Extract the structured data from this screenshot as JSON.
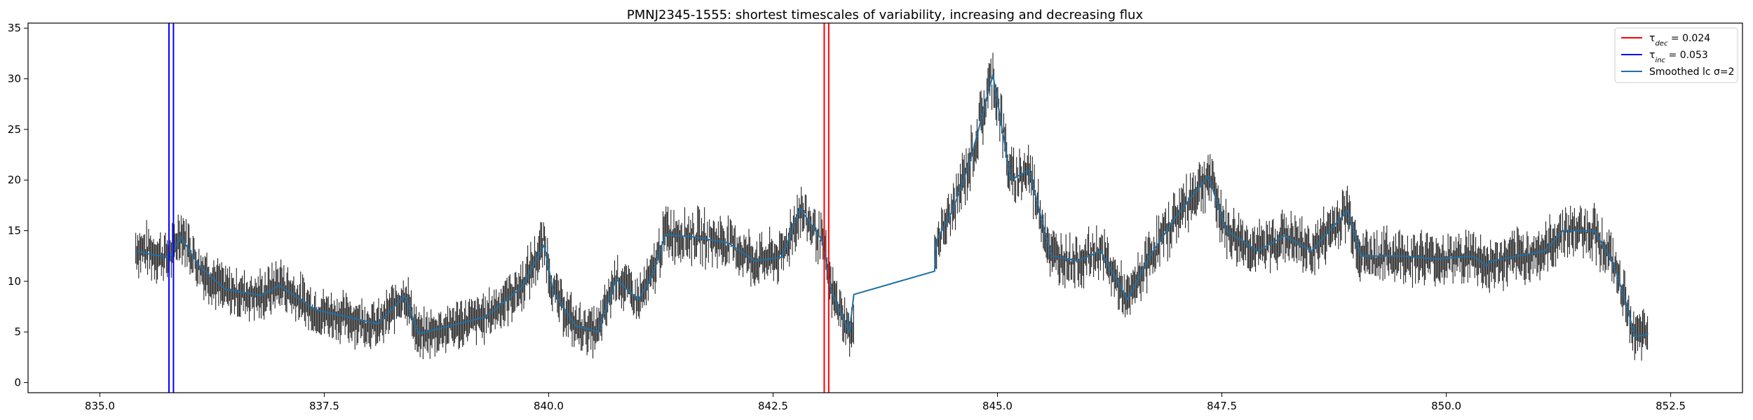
{
  "chart_data": {
    "type": "line",
    "title": "PMNJ2345-1555: shortest timescales of variability, increasing and decreasing flux",
    "xlabel": "",
    "ylabel": "",
    "xlim": [
      834.2,
      853.3
    ],
    "ylim": [
      -1,
      35.5
    ],
    "x_ticks": [
      835.0,
      837.5,
      840.0,
      842.5,
      845.0,
      847.5,
      850.0,
      852.5
    ],
    "x_tick_labels": [
      "835.0",
      "837.5",
      "840.0",
      "842.5",
      "845.0",
      "847.5",
      "850.0",
      "852.5"
    ],
    "y_ticks": [
      0,
      5,
      10,
      15,
      20,
      25,
      30,
      35
    ],
    "y_tick_labels": [
      "0",
      "5",
      "10",
      "15",
      "20",
      "25",
      "30",
      "35"
    ],
    "grid": false,
    "legend_position": "top-right",
    "legend": {
      "dec_label": "τ",
      "dec_sub": "dec",
      "dec_value": " = 0.024",
      "inc_label": "τ",
      "inc_sub": "inc",
      "inc_value": " = 0.053",
      "smooth_label": "Smoothed lc σ=2"
    },
    "vlines": {
      "decrease": {
        "x": [
          843.07,
          843.12
        ],
        "color": "#ff0000"
      },
      "increase": {
        "x": [
          835.77,
          835.82
        ],
        "color": "#0000ff"
      }
    },
    "colors": {
      "data": "#222222",
      "smoothed": "#1f6fa5"
    },
    "segments": [
      {
        "x0": 835.4,
        "x1": 843.4,
        "knots": [
          [
            835.4,
            13.3
          ],
          [
            835.6,
            12.8
          ],
          [
            835.78,
            12.3
          ],
          [
            835.9,
            15.0
          ],
          [
            836.1,
            11.5
          ],
          [
            836.4,
            9.0
          ],
          [
            836.8,
            8.5
          ],
          [
            837.0,
            9.8
          ],
          [
            837.4,
            7.0
          ],
          [
            837.8,
            6.3
          ],
          [
            838.1,
            5.5
          ],
          [
            838.4,
            8.8
          ],
          [
            838.55,
            4.5
          ],
          [
            838.9,
            5.5
          ],
          [
            839.3,
            6.5
          ],
          [
            839.7,
            9.5
          ],
          [
            839.95,
            13.8
          ],
          [
            840.05,
            9.0
          ],
          [
            840.3,
            5.5
          ],
          [
            840.55,
            5.0
          ],
          [
            840.75,
            10.5
          ],
          [
            841.0,
            8.0
          ],
          [
            841.15,
            10.5
          ],
          [
            841.3,
            14.8
          ],
          [
            841.6,
            14.5
          ],
          [
            842.0,
            13.8
          ],
          [
            842.3,
            12.0
          ],
          [
            842.6,
            12.5
          ],
          [
            842.8,
            17.0
          ],
          [
            843.05,
            14.0
          ],
          [
            843.15,
            9.0
          ],
          [
            843.35,
            5.0
          ]
        ]
      },
      {
        "x0": 844.3,
        "x1": 852.25,
        "knots": [
          [
            844.3,
            13.5
          ],
          [
            844.5,
            17.0
          ],
          [
            844.7,
            22.0
          ],
          [
            844.95,
            30.5
          ],
          [
            845.15,
            20.0
          ],
          [
            845.35,
            21.0
          ],
          [
            845.6,
            12.5
          ],
          [
            845.9,
            12.0
          ],
          [
            846.15,
            13.0
          ],
          [
            846.45,
            8.0
          ],
          [
            846.7,
            12.5
          ],
          [
            847.0,
            16.5
          ],
          [
            847.35,
            20.5
          ],
          [
            847.55,
            15.0
          ],
          [
            847.9,
            13.0
          ],
          [
            848.2,
            14.5
          ],
          [
            848.5,
            13.0
          ],
          [
            848.9,
            17.0
          ],
          [
            849.05,
            12.5
          ],
          [
            849.5,
            12.5
          ],
          [
            849.9,
            12.2
          ],
          [
            850.3,
            12.5
          ],
          [
            850.45,
            11.5
          ],
          [
            851.1,
            13.0
          ],
          [
            851.3,
            15.0
          ],
          [
            851.65,
            15.0
          ],
          [
            851.85,
            12.0
          ],
          [
            852.0,
            8.0
          ],
          [
            852.1,
            4.5
          ],
          [
            852.25,
            4.8
          ]
        ]
      }
    ],
    "smoothed_nodes": [
      [
        835.4,
        13.0
      ],
      [
        835.6,
        12.6
      ],
      [
        835.78,
        12.4
      ],
      [
        835.9,
        14.4
      ],
      [
        836.1,
        11.6
      ],
      [
        836.4,
        9.2
      ],
      [
        836.8,
        8.6
      ],
      [
        837.0,
        9.6
      ],
      [
        837.4,
        7.2
      ],
      [
        837.8,
        6.4
      ],
      [
        838.1,
        5.8
      ],
      [
        838.4,
        8.6
      ],
      [
        838.55,
        4.8
      ],
      [
        838.9,
        5.6
      ],
      [
        839.3,
        6.5
      ],
      [
        839.7,
        9.4
      ],
      [
        839.95,
        13.6
      ],
      [
        840.05,
        9.0
      ],
      [
        840.3,
        5.6
      ],
      [
        840.55,
        5.0
      ],
      [
        840.75,
        10.2
      ],
      [
        841.0,
        8.2
      ],
      [
        841.15,
        10.5
      ],
      [
        841.3,
        14.6
      ],
      [
        841.6,
        14.4
      ],
      [
        842.0,
        13.8
      ],
      [
        842.3,
        12.0
      ],
      [
        842.6,
        12.4
      ],
      [
        842.8,
        17.2
      ],
      [
        843.05,
        14.0
      ],
      [
        843.15,
        9.0
      ],
      [
        843.35,
        5.0
      ],
      [
        843.4,
        8.7
      ],
      [
        844.3,
        11.0
      ],
      [
        844.32,
        14.0
      ],
      [
        844.5,
        17.0
      ],
      [
        844.7,
        22.0
      ],
      [
        844.95,
        30.4
      ],
      [
        845.15,
        20.0
      ],
      [
        845.35,
        21.0
      ],
      [
        845.6,
        12.5
      ],
      [
        845.9,
        12.0
      ],
      [
        846.15,
        13.0
      ],
      [
        846.45,
        8.2
      ],
      [
        846.7,
        12.5
      ],
      [
        847.0,
        16.5
      ],
      [
        847.35,
        20.4
      ],
      [
        847.55,
        15.0
      ],
      [
        847.9,
        13.0
      ],
      [
        848.2,
        14.5
      ],
      [
        848.5,
        13.0
      ],
      [
        848.9,
        17.0
      ],
      [
        849.05,
        12.5
      ],
      [
        849.5,
        12.5
      ],
      [
        849.9,
        12.2
      ],
      [
        850.3,
        12.5
      ],
      [
        850.45,
        11.5
      ],
      [
        850.5,
        12.0
      ],
      [
        851.1,
        13.0
      ],
      [
        851.3,
        15.0
      ],
      [
        851.65,
        15.0
      ],
      [
        851.85,
        12.0
      ],
      [
        852.0,
        8.0
      ],
      [
        852.1,
        4.5
      ],
      [
        852.25,
        4.8
      ]
    ]
  }
}
